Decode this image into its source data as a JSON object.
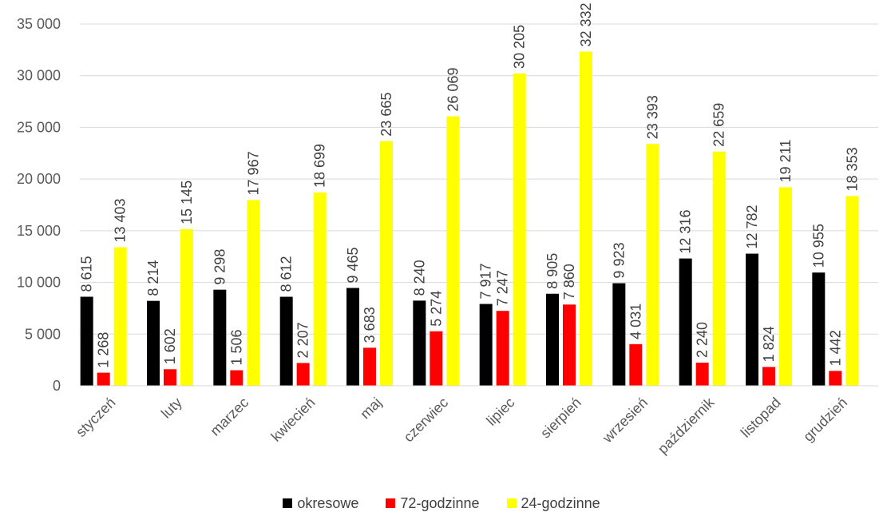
{
  "chart_data": {
    "type": "bar",
    "title": "",
    "xlabel": "",
    "ylabel": "",
    "ylim": [
      0,
      35000
    ],
    "yticks": [
      0,
      5000,
      10000,
      15000,
      20000,
      25000,
      30000,
      35000
    ],
    "ytick_labels": [
      "0",
      "5 000",
      "10 000",
      "15 000",
      "20 000",
      "25 000",
      "30 000",
      "35 000"
    ],
    "grid": true,
    "legend_position": "bottom",
    "categories": [
      "styczeń",
      "luty",
      "marzec",
      "kwiecień",
      "maj",
      "czerwiec",
      "lipiec",
      "sierpień",
      "wrzesień",
      "październik",
      "listopad",
      "grudzień"
    ],
    "series": [
      {
        "name": "okresowe",
        "color": "#000000",
        "values": [
          8615,
          8214,
          9298,
          8612,
          9465,
          8240,
          7917,
          8905,
          9923,
          12316,
          12782,
          10955
        ],
        "labels": [
          "8 615",
          "8 214",
          "9 298",
          "8 612",
          "9 465",
          "8 240",
          "7 917",
          "8 905",
          "9 923",
          "12 316",
          "12 782",
          "10 955"
        ]
      },
      {
        "name": "72-godzinne",
        "color": "#ff0000",
        "values": [
          1268,
          1602,
          1506,
          2207,
          3683,
          5274,
          7247,
          7860,
          4031,
          2240,
          1824,
          1442
        ],
        "labels": [
          "1 268",
          "1 602",
          "1 506",
          "2 207",
          "3 683",
          "5 274",
          "7 247",
          "7 860",
          "4 031",
          "2 240",
          "1 824",
          "1 442"
        ]
      },
      {
        "name": "24-godzinne",
        "color": "#ffff00",
        "values": [
          13403,
          15145,
          17967,
          18699,
          23665,
          26069,
          30205,
          32332,
          23393,
          22659,
          19211,
          18353
        ],
        "labels": [
          "13 403",
          "15 145",
          "17 967",
          "18 699",
          "23 665",
          "26 069",
          "30 205",
          "32 332",
          "23 393",
          "22 659",
          "19 211",
          "18 353"
        ]
      }
    ]
  }
}
